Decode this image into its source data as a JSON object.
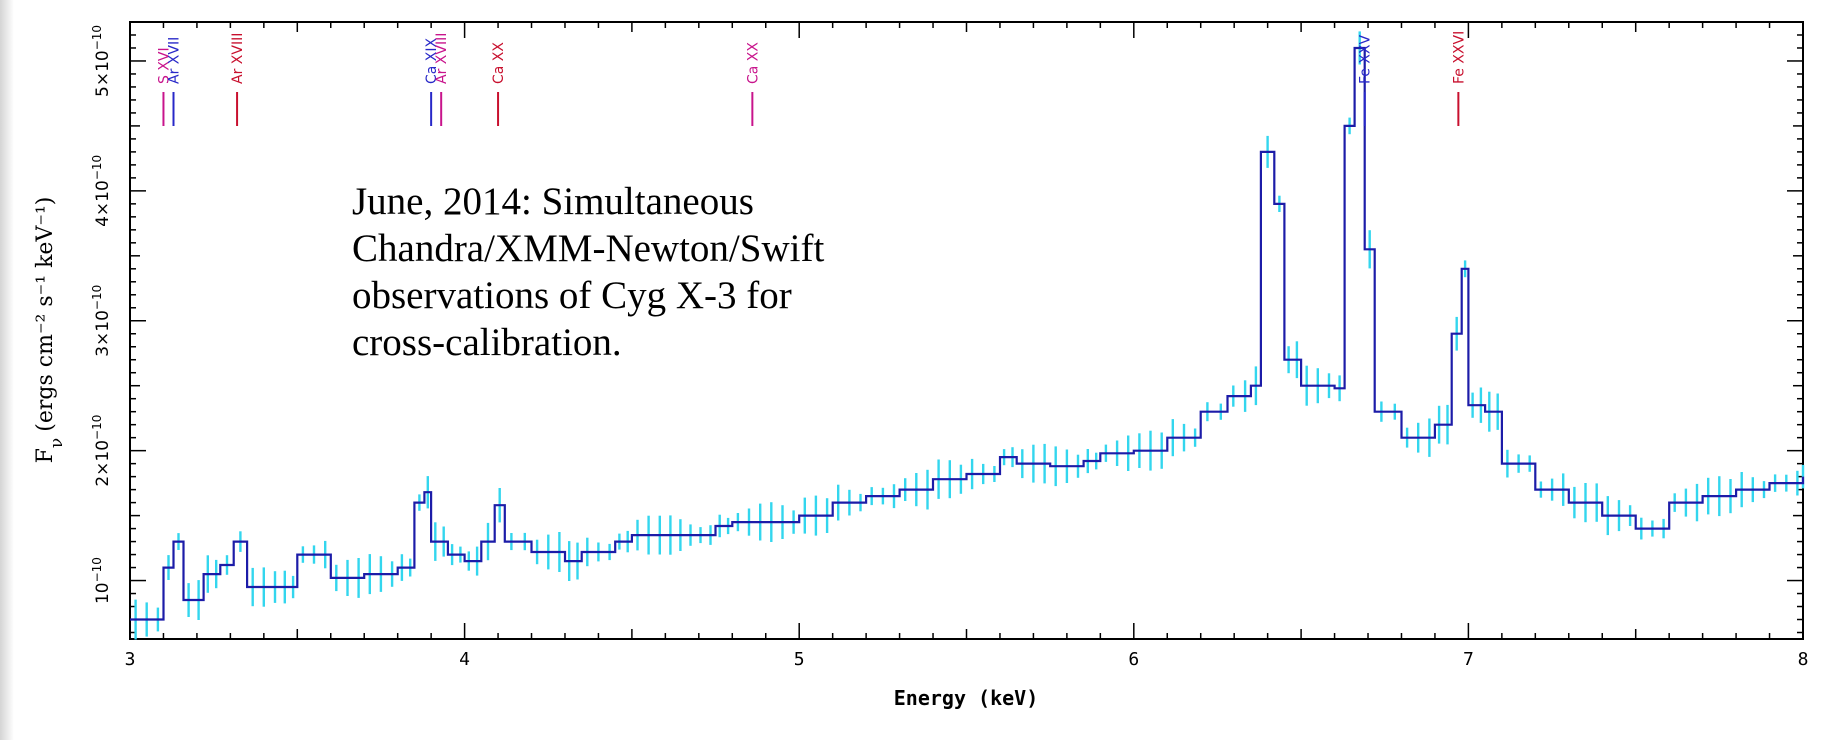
{
  "chart_data": {
    "type": "line",
    "title": "",
    "xlabel": "Energy (keV)",
    "ylabel_prefix": "F",
    "ylabel_sub": "ν",
    "ylabel_units": "(ergs cm⁻² s⁻¹ keV⁻¹)",
    "xlim": [
      3,
      8
    ],
    "ylim": [
      0.55,
      5.3
    ],
    "y_scale_note": "values in units of 1e-10 ergs cm^-2 s^-1 keV^-1",
    "xticks": [
      3,
      4,
      5,
      6,
      7,
      8
    ],
    "yticks": [
      1,
      2,
      3,
      4,
      5
    ],
    "ytick_mantissas": [
      "",
      "2×",
      "3×",
      "4×",
      "5×"
    ],
    "ytick_base": "10",
    "ytick_exp": "−10",
    "grid": false,
    "colors": {
      "model": "#1c1ca8",
      "errors": "#33d6ee",
      "line_id_red": "#c8102e",
      "line_id_magenta": "#c8148c",
      "line_id_blue": "#2828c8"
    },
    "series": [
      {
        "kind": "step",
        "x": [
          3.0,
          3.1,
          3.13,
          3.16,
          3.22,
          3.27,
          3.31,
          3.35,
          3.45,
          3.5,
          3.6,
          3.7,
          3.8,
          3.85,
          3.88,
          3.9,
          3.95,
          4.0,
          4.05,
          4.09,
          4.12,
          4.2,
          4.3,
          4.35,
          4.45,
          4.5,
          4.6,
          4.75,
          4.8,
          5.0,
          5.1,
          5.2,
          5.3,
          5.4,
          5.5,
          5.6,
          5.65,
          5.75,
          5.85,
          5.9,
          6.0,
          6.1,
          6.2,
          6.28,
          6.35,
          6.38,
          6.42,
          6.45,
          6.5,
          6.6,
          6.63,
          6.66,
          6.69,
          6.72,
          6.8,
          6.9,
          6.95,
          6.98,
          7.0,
          7.05,
          7.1,
          7.2,
          7.3,
          7.4,
          7.5,
          7.6,
          7.7,
          7.8,
          7.9,
          8.0
        ],
        "y": [
          0.7,
          1.1,
          1.3,
          0.85,
          1.05,
          1.12,
          1.3,
          0.95,
          0.95,
          1.2,
          1.02,
          1.05,
          1.1,
          1.6,
          1.68,
          1.3,
          1.2,
          1.15,
          1.3,
          1.58,
          1.3,
          1.22,
          1.15,
          1.22,
          1.3,
          1.35,
          1.35,
          1.42,
          1.45,
          1.5,
          1.6,
          1.65,
          1.7,
          1.78,
          1.82,
          1.95,
          1.9,
          1.88,
          1.92,
          1.98,
          2.0,
          2.1,
          2.3,
          2.42,
          2.5,
          4.3,
          3.9,
          2.7,
          2.5,
          2.48,
          4.5,
          5.1,
          3.55,
          2.3,
          2.1,
          2.2,
          2.9,
          3.4,
          2.35,
          2.3,
          1.9,
          1.7,
          1.6,
          1.5,
          1.4,
          1.6,
          1.65,
          1.7,
          1.75,
          1.8
        ]
      }
    ],
    "line_ids": [
      {
        "label": "S XVI",
        "energy": 3.1,
        "color": "#c8148c"
      },
      {
        "label": "Ar XVII",
        "energy": 3.13,
        "color": "#2828c8"
      },
      {
        "label": "Ar XVIII",
        "energy": 3.32,
        "color": "#c8102e"
      },
      {
        "label": "Ca XIX",
        "energy": 3.9,
        "color": "#2828c8"
      },
      {
        "label": "Ar XVIII",
        "energy": 3.93,
        "color": "#c8148c"
      },
      {
        "label": "Ca XX",
        "energy": 4.1,
        "color": "#c8102e"
      },
      {
        "label": "Ca XX",
        "energy": 4.86,
        "color": "#c8148c"
      },
      {
        "label": "Fe XXV",
        "energy": 6.69,
        "color": "#2828c8"
      },
      {
        "label": "Fe XXVI",
        "energy": 6.97,
        "color": "#c8102e"
      }
    ]
  },
  "annotation": {
    "lines": [
      "June, 2014: Simultaneous",
      "Chandra/XMM-Newton/Swift",
      "observations of Cyg X-3 for",
      "cross-calibration."
    ]
  }
}
